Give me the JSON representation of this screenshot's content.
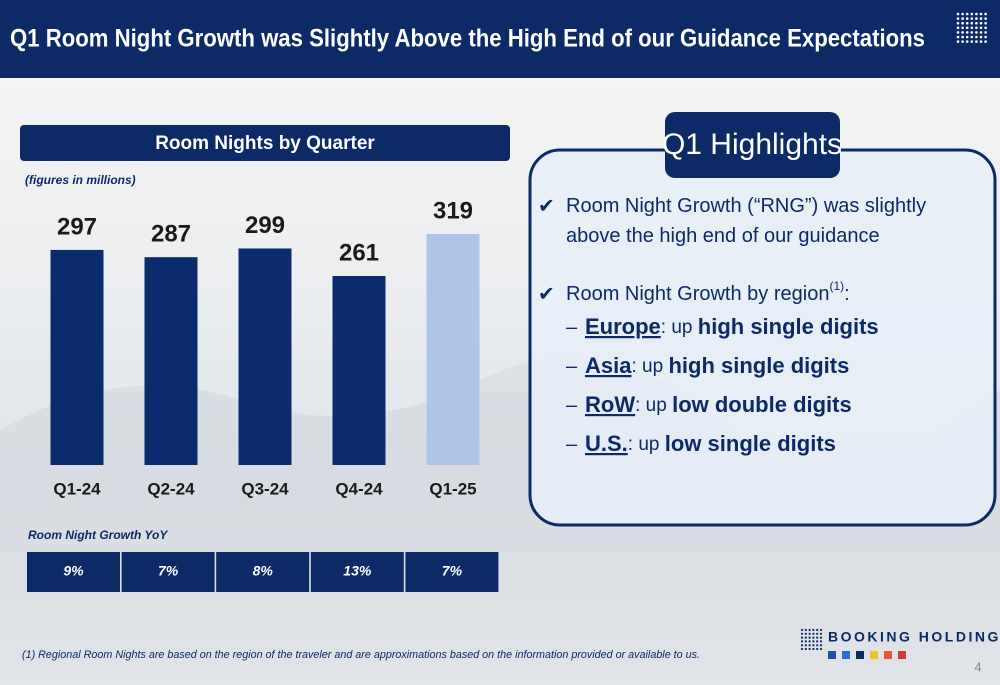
{
  "header": {
    "title": "Q1 Room Night Growth was Slightly Above the High End of our Guidance Expectations"
  },
  "chart_data": {
    "type": "bar",
    "title": "Room Nights by Quarter",
    "subtitle": "(figures in millions)",
    "categories": [
      "Q1-24",
      "Q2-24",
      "Q3-24",
      "Q4-24",
      "Q1-25"
    ],
    "values": [
      297,
      287,
      299,
      261,
      319
    ],
    "colors": [
      "#0b2c6c",
      "#0b2c6c",
      "#0b2c6c",
      "#0b2c6c",
      "#aec4e8"
    ]
  },
  "growth": {
    "label": "Room Night Growth YoY",
    "values": [
      9,
      7,
      8,
      13,
      7
    ],
    "value_labels": [
      "9%",
      "7%",
      "8%",
      "13%",
      "7%"
    ]
  },
  "highlights": {
    "title": "Q1 Highlights",
    "check": "✔",
    "dash": "–",
    "items": [
      {
        "lines": [
          "Room Night Growth (“RNG”) was slightly",
          "above the high end of our guidance"
        ]
      },
      {
        "lines": [
          "Room Night Growth by region"
        ],
        "sup": "(1)",
        "tail": ":"
      }
    ],
    "regions": [
      {
        "name": "Europe",
        "mid": ": up ",
        "detail": "high single digits"
      },
      {
        "name": "Asia",
        "mid": ": up ",
        "detail": "high single digits"
      },
      {
        "name": "RoW",
        "mid": ": up ",
        "detail": "low double digits"
      },
      {
        "name": "U.S.",
        "mid": ": up ",
        "detail": "low single digits"
      }
    ]
  },
  "footnote": "(1) Regional Room Nights are based on the region of the traveler and are approximations based on the information provided or available to us.",
  "logo": "BOOKING HOLDINGS",
  "page_number": "4"
}
